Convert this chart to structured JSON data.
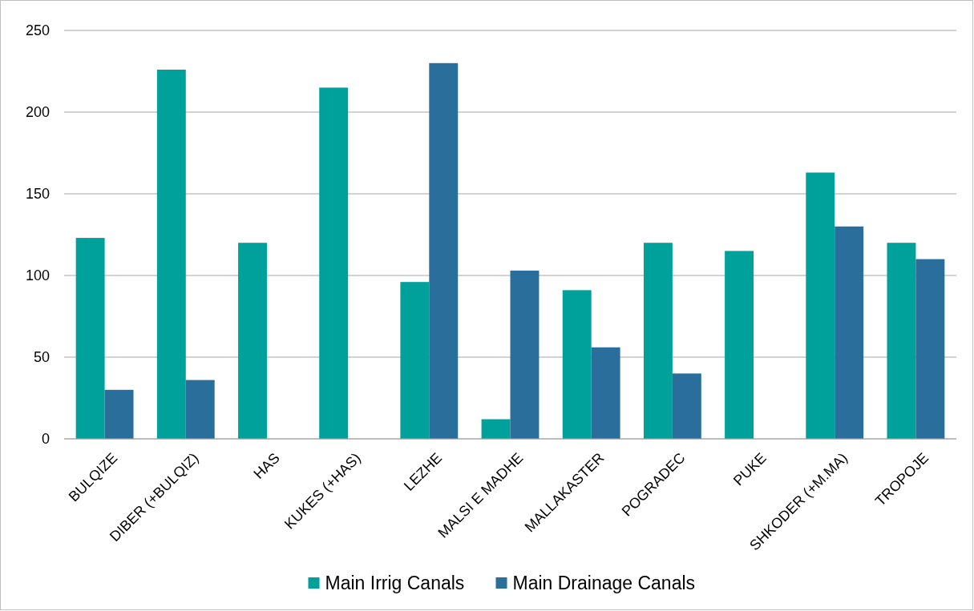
{
  "chart_data": {
    "type": "bar",
    "categories": [
      "BULQIZE",
      "DIBER (+BULQIZ)",
      "HAS",
      "KUKES (+HAS)",
      "LEZHE",
      "MALSI E MADHE",
      "MALLAKASTER",
      "POGRADEC",
      "PUKE",
      "SHKODER (+M.MA)",
      "TROPOJE"
    ],
    "series": [
      {
        "name": "Main Irrig Canals",
        "color": "#00a19a",
        "values": [
          123,
          226,
          120,
          215,
          96,
          12,
          91,
          120,
          115,
          163,
          120
        ]
      },
      {
        "name": "Main Drainage Canals",
        "color": "#2a6f9b",
        "values": [
          30,
          36,
          null,
          null,
          230,
          103,
          56,
          40,
          null,
          130,
          110
        ]
      }
    ],
    "ylim": [
      0,
      250
    ],
    "yticks": [
      0,
      50,
      100,
      150,
      200,
      250
    ],
    "grid": "y",
    "legend": "bottom"
  }
}
